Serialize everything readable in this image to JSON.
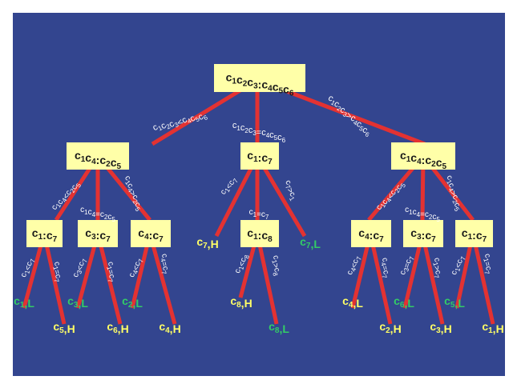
{
  "colors": {
    "background": "#33458f",
    "node_fill": "#ffffa8",
    "edge": "#e33232",
    "leaf_yellow": "#ffff66",
    "leaf_green": "#33cc66",
    "edge_label": "#ffffff"
  },
  "nodes": {
    "root": "c1c2c3:c4c5c6",
    "l1_left": "c1c4:c2c5",
    "l1_mid": "c1:c7",
    "l1_right": "c1c4:c2c5",
    "l2_a": "c1:c7",
    "l2_b": "c3:c7",
    "l2_c": "c4:c7",
    "l2_d": "c1:c8",
    "l2_e": "c4:c7",
    "l2_f": "c3:c7",
    "l2_g": "c1:c7"
  },
  "edge_labels": {
    "root_left": "c1c2c3<c4c5c6",
    "root_mid": "c1c2c3=c4c5c6",
    "root_right": "c1c2c3>c4c5c6",
    "ll_left": "c1c4<c2c5",
    "ll_mid": "c1c4=c2c5",
    "ll_right": "c1c4>c2c5",
    "lm_left": "c1<c7",
    "lm_mid": "c1=c7",
    "lm_right": "c7>c1",
    "lr_left": "c1c4<c2c5",
    "lr_mid": "c1c4=c2c5",
    "lr_right": "c1c4>c2c5",
    "a_left": "c1<c7",
    "a_right": "c1=c7",
    "b_left": "c3<c7",
    "b_right": "c1=c7",
    "c_left": "c4<c7",
    "c_right": "c4=c7",
    "d_left": "c1<c8",
    "d_right": "c1>c8",
    "e_left": "c4<c7",
    "e_right": "c4=c7",
    "f_left": "c3=c7",
    "f_right": "c1>c7",
    "g_left": "c1<c7",
    "g_right": "c1=c7"
  },
  "leaves": {
    "c1L": "c1,L",
    "c5H": "c5,H",
    "c3L": "c3,L",
    "c6H": "c6,H",
    "c2L": "c2,L",
    "c4H": "c4,H",
    "c7H": "c7,H",
    "c7L": "c7,L",
    "c8H": "c8,H",
    "c8L": "c8,L",
    "c4L": "c4,L",
    "c2H": "c2,H",
    "c6L": "c6,L",
    "c3H": "c3,H",
    "c5L": "c5,L",
    "c1H": "c1,H"
  }
}
